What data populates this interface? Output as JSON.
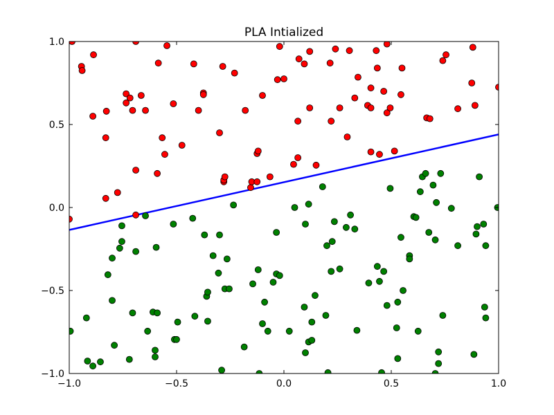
{
  "chart_data": {
    "type": "scatter",
    "title": "PLA Intialized",
    "xlabel": "",
    "ylabel": "",
    "xlim": [
      -1.0,
      1.0
    ],
    "ylim": [
      -1.0,
      1.0
    ],
    "xticks": [
      "−1.0",
      "−0.5",
      "0.0",
      "0.5",
      "1.0"
    ],
    "xtick_values": [
      -1.0,
      -0.5,
      0.0,
      0.5,
      1.0
    ],
    "yticks": [
      "−1.0",
      "−0.5",
      "0.0",
      "0.5",
      "1.0"
    ],
    "ytick_values": [
      -1.0,
      -0.5,
      0.0,
      0.5,
      1.0
    ],
    "grid": false,
    "line": {
      "x": [
        -1.0,
        1.0
      ],
      "y": [
        -0.135,
        0.44
      ],
      "color": "#0000ff"
    },
    "series": [
      {
        "color": "#ff0000",
        "points": [
          [
            -0.987,
            1.0
          ],
          [
            -0.943,
            0.85
          ],
          [
            -0.94,
            0.825
          ],
          [
            -0.887,
            0.92
          ],
          [
            -0.89,
            0.55
          ],
          [
            -0.827,
            0.58
          ],
          [
            -0.83,
            0.42
          ],
          [
            -0.83,
            0.055
          ],
          [
            -0.775,
            0.09
          ],
          [
            -0.735,
            0.685
          ],
          [
            -0.735,
            0.63
          ],
          [
            -0.717,
            0.66
          ],
          [
            -0.705,
            0.585
          ],
          [
            -0.69,
            1.0
          ],
          [
            -0.69,
            0.225
          ],
          [
            -0.69,
            -0.045
          ],
          [
            -0.665,
            0.675
          ],
          [
            -0.645,
            0.585
          ],
          [
            -0.585,
            0.87
          ],
          [
            -0.59,
            0.205
          ],
          [
            -0.567,
            0.42
          ],
          [
            -0.555,
            0.32
          ],
          [
            -0.545,
            0.975
          ],
          [
            -0.515,
            0.625
          ],
          [
            -0.475,
            0.375
          ],
          [
            -0.42,
            0.865
          ],
          [
            -0.398,
            0.585
          ],
          [
            -0.375,
            0.69
          ],
          [
            -0.375,
            0.68
          ],
          [
            -0.3,
            0.45
          ],
          [
            -0.285,
            0.85
          ],
          [
            -0.28,
            0.155
          ],
          [
            -0.28,
            0.165
          ],
          [
            -0.275,
            0.185
          ],
          [
            -0.23,
            0.81
          ],
          [
            -0.18,
            0.585
          ],
          [
            -0.155,
            0.12
          ],
          [
            -0.15,
            0.155
          ],
          [
            -0.125,
            0.155
          ],
          [
            -0.125,
            0.325
          ],
          [
            -0.12,
            0.34
          ],
          [
            -0.1,
            0.675
          ],
          [
            -0.065,
            0.185
          ],
          [
            -0.03,
            0.77
          ],
          [
            -0.02,
            0.97
          ],
          [
            0.0,
            0.775
          ],
          [
            0.045,
            0.26
          ],
          [
            0.065,
            0.52
          ],
          [
            0.065,
            0.3
          ],
          [
            0.07,
            0.895
          ],
          [
            0.095,
            0.865
          ],
          [
            0.12,
            0.94
          ],
          [
            0.12,
            0.6
          ],
          [
            0.15,
            0.255
          ],
          [
            0.215,
            0.87
          ],
          [
            0.22,
            0.52
          ],
          [
            0.24,
            0.955
          ],
          [
            0.26,
            0.6
          ],
          [
            0.295,
            0.425
          ],
          [
            0.305,
            0.945
          ],
          [
            0.33,
            0.66
          ],
          [
            0.345,
            0.785
          ],
          [
            0.39,
            0.615
          ],
          [
            0.405,
            0.72
          ],
          [
            0.405,
            0.6
          ],
          [
            0.405,
            0.335
          ],
          [
            0.43,
            0.945
          ],
          [
            0.435,
            0.84
          ],
          [
            0.445,
            0.32
          ],
          [
            0.465,
            0.7
          ],
          [
            0.48,
            0.985
          ],
          [
            0.48,
            0.57
          ],
          [
            0.495,
            0.6
          ],
          [
            0.515,
            0.34
          ],
          [
            0.545,
            0.68
          ],
          [
            0.55,
            0.84
          ],
          [
            0.665,
            0.54
          ],
          [
            0.68,
            0.535
          ],
          [
            0.74,
            0.885
          ],
          [
            0.755,
            0.92
          ],
          [
            0.81,
            0.595
          ],
          [
            0.875,
            0.75
          ],
          [
            0.88,
            0.965
          ],
          [
            0.89,
            0.615
          ],
          [
            1.0,
            0.725
          ],
          [
            -1.0,
            -0.07
          ]
        ]
      },
      {
        "color": "#008000",
        "points": [
          [
            -0.995,
            -0.745
          ],
          [
            -0.92,
            -0.665
          ],
          [
            -0.915,
            -0.925
          ],
          [
            -0.89,
            -0.955
          ],
          [
            -0.855,
            -0.93
          ],
          [
            -0.82,
            -0.405
          ],
          [
            -0.8,
            -0.305
          ],
          [
            -0.8,
            -0.56
          ],
          [
            -0.79,
            -0.83
          ],
          [
            -0.765,
            -0.245
          ],
          [
            -0.755,
            -0.11
          ],
          [
            -0.755,
            -0.205
          ],
          [
            -0.72,
            -0.915
          ],
          [
            -0.705,
            -0.635
          ],
          [
            -0.69,
            -0.265
          ],
          [
            -0.645,
            -0.05
          ],
          [
            -0.635,
            -0.745
          ],
          [
            -0.61,
            -0.63
          ],
          [
            -0.6,
            -0.86
          ],
          [
            -0.6,
            -0.9
          ],
          [
            -0.595,
            -0.24
          ],
          [
            -0.59,
            -0.635
          ],
          [
            -0.515,
            -0.1
          ],
          [
            -0.51,
            -0.795
          ],
          [
            -0.5,
            -0.795
          ],
          [
            -0.495,
            -0.69
          ],
          [
            -0.425,
            -0.065
          ],
          [
            -0.415,
            -0.655
          ],
          [
            -0.37,
            -0.165
          ],
          [
            -0.36,
            -0.535
          ],
          [
            -0.355,
            -0.51
          ],
          [
            -0.355,
            -0.685
          ],
          [
            -0.33,
            -0.29
          ],
          [
            -0.305,
            -0.395
          ],
          [
            -0.3,
            -0.165
          ],
          [
            -0.29,
            -0.98
          ],
          [
            -0.275,
            -0.49
          ],
          [
            -0.265,
            -0.31
          ],
          [
            -0.255,
            -0.49
          ],
          [
            -0.235,
            0.015
          ],
          [
            -0.185,
            -0.84
          ],
          [
            -0.145,
            -0.46
          ],
          [
            -0.12,
            -0.375
          ],
          [
            -0.115,
            -1.0
          ],
          [
            -0.1,
            -0.7
          ],
          [
            -0.09,
            -0.57
          ],
          [
            -0.075,
            -0.745
          ],
          [
            -0.05,
            -0.45
          ],
          [
            -0.035,
            -0.4
          ],
          [
            -0.035,
            -0.15
          ],
          [
            -0.02,
            -0.41
          ],
          [
            0.025,
            -0.745
          ],
          [
            0.05,
            0.0
          ],
          [
            0.095,
            -0.6
          ],
          [
            0.1,
            -0.1
          ],
          [
            0.1,
            -0.875
          ],
          [
            0.115,
            -0.81
          ],
          [
            0.115,
            0.02
          ],
          [
            0.13,
            -0.8
          ],
          [
            0.13,
            -0.69
          ],
          [
            0.145,
            -0.53
          ],
          [
            0.18,
            0.125
          ],
          [
            0.195,
            -0.65
          ],
          [
            0.2,
            -0.23
          ],
          [
            0.205,
            -0.995
          ],
          [
            0.22,
            -0.385
          ],
          [
            0.225,
            -0.205
          ],
          [
            0.235,
            -0.085
          ],
          [
            0.26,
            -0.37
          ],
          [
            0.29,
            -0.12
          ],
          [
            0.31,
            -0.045
          ],
          [
            0.33,
            -0.13
          ],
          [
            0.34,
            -0.74
          ],
          [
            0.395,
            -0.455
          ],
          [
            0.435,
            -0.355
          ],
          [
            0.445,
            -0.445
          ],
          [
            0.455,
            -0.995
          ],
          [
            0.465,
            -0.385
          ],
          [
            0.48,
            -0.59
          ],
          [
            0.495,
            0.115
          ],
          [
            0.525,
            -0.725
          ],
          [
            0.53,
            -0.57
          ],
          [
            0.53,
            -0.91
          ],
          [
            0.545,
            -0.18
          ],
          [
            0.555,
            -0.5
          ],
          [
            0.585,
            -0.29
          ],
          [
            0.585,
            -0.31
          ],
          [
            0.605,
            -0.055
          ],
          [
            0.615,
            -0.06
          ],
          [
            0.625,
            -0.745
          ],
          [
            0.635,
            0.095
          ],
          [
            0.645,
            0.185
          ],
          [
            0.66,
            0.205
          ],
          [
            0.675,
            -0.15
          ],
          [
            0.695,
            0.135
          ],
          [
            0.705,
            -1.0
          ],
          [
            0.71,
            0.03
          ],
          [
            0.705,
            -0.195
          ],
          [
            0.72,
            -0.87
          ],
          [
            0.72,
            -0.94
          ],
          [
            0.73,
            0.205
          ],
          [
            0.74,
            -0.65
          ],
          [
            0.78,
            -0.005
          ],
          [
            0.81,
            -0.23
          ],
          [
            0.885,
            -0.885
          ],
          [
            0.895,
            -0.16
          ],
          [
            0.9,
            -0.115
          ],
          [
            0.91,
            0.185
          ],
          [
            0.93,
            -0.1
          ],
          [
            0.935,
            -0.6
          ],
          [
            0.94,
            -0.665
          ],
          [
            0.94,
            -0.23
          ],
          [
            0.995,
            0.0
          ]
        ]
      }
    ]
  }
}
